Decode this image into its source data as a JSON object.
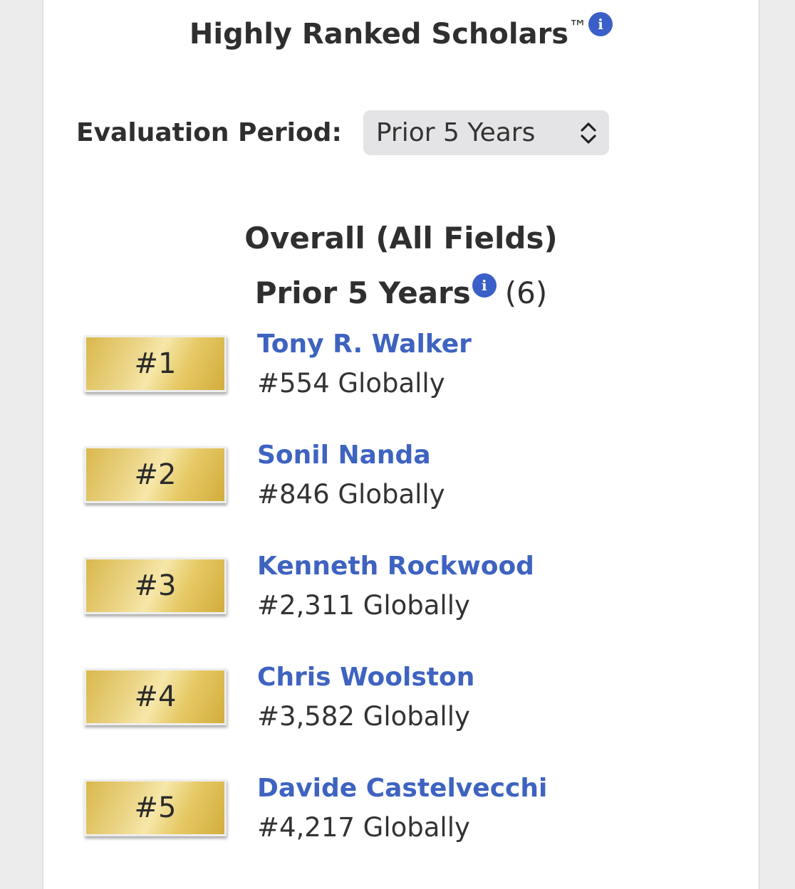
{
  "header": {
    "title": "Highly Ranked Scholars",
    "trademark": "™",
    "info_glyph": "i"
  },
  "evaluation": {
    "label": "Evaluation Period:",
    "selected": "Prior 5 Years"
  },
  "section": {
    "title": "Overall (All Fields)",
    "period": "Prior 5 Years",
    "count": "(6)"
  },
  "scholars": [
    {
      "position": "#1",
      "name": "Tony R. Walker",
      "global_rank": "#554 Globally"
    },
    {
      "position": "#2",
      "name": "Sonil Nanda",
      "global_rank": "#846 Globally"
    },
    {
      "position": "#3",
      "name": "Kenneth Rockwood",
      "global_rank": "#2,311 Globally"
    },
    {
      "position": "#4",
      "name": "Chris Woolston",
      "global_rank": "#3,582 Globally"
    },
    {
      "position": "#5",
      "name": "Davide Castelvecchi",
      "global_rank": "#4,217 Globally"
    }
  ],
  "colors": {
    "link": "#3e63c0",
    "info": "#3b5fc8",
    "gold": "#e6c965"
  }
}
